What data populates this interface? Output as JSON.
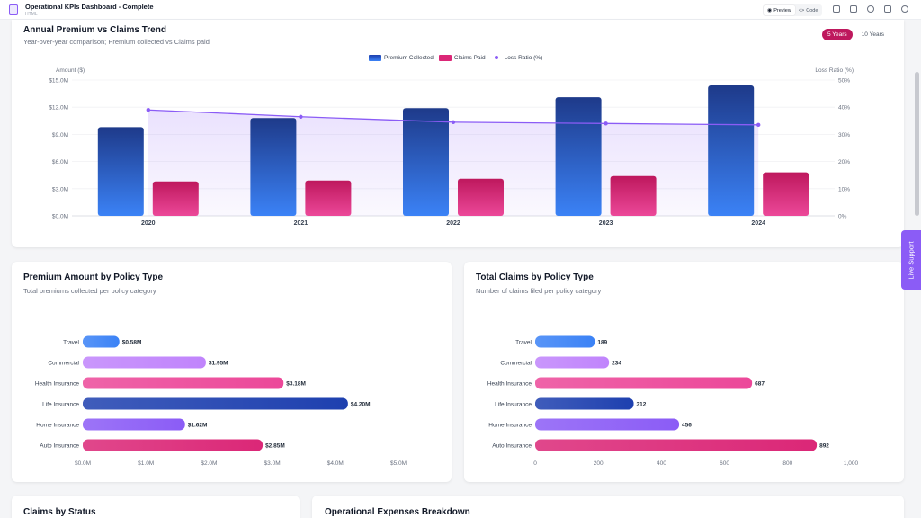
{
  "app": {
    "title": "Operational KPIs Dashboard - Complete",
    "subtitle": "HTML",
    "preview_label": "Preview",
    "code_label": "Code"
  },
  "icons": [
    "shield-icon",
    "eye-icon",
    "code-icon",
    "download-icon",
    "bookmark-icon",
    "globe-icon",
    "expand-icon",
    "more-icon"
  ],
  "trend": {
    "title": "Annual Premium vs Claims Trend",
    "subtitle": "Year-over-year comparison; Premium collected vs Claims paid",
    "toggle": [
      "5 Years",
      "10 Years"
    ],
    "active_toggle": "5 Years"
  },
  "premium_by_type": {
    "title": "Premium Amount by Policy Type",
    "subtitle": "Total premiums collected per policy category"
  },
  "claims_by_type": {
    "title": "Total Claims by Policy Type",
    "subtitle": "Number of claims filed per policy category"
  },
  "bottom": {
    "claims_status_title": "Claims by Status",
    "expenses_title": "Operational Expenses Breakdown"
  },
  "live_support": "Live Support",
  "colors": {
    "accent": "#be185d",
    "premium": "#2f5fd0",
    "claims": "#db2777",
    "loss_ratio": "#8b5cf6"
  },
  "chart_data": [
    {
      "type": "bar",
      "title": "Annual Premium vs Claims Trend",
      "categories": [
        "2020",
        "2021",
        "2022",
        "2023",
        "2024"
      ],
      "series": [
        {
          "name": "Premium Collected",
          "axis": "left",
          "values": [
            9.8,
            10.8,
            11.9,
            13.1,
            14.4
          ]
        },
        {
          "name": "Claims Paid",
          "axis": "left",
          "values": [
            3.8,
            3.9,
            4.1,
            4.4,
            4.8
          ]
        },
        {
          "name": "Loss Ratio (%)",
          "type": "line",
          "axis": "right",
          "values": [
            39,
            36.5,
            34.5,
            34,
            33.5
          ]
        }
      ],
      "ylabel": "Amount ($)",
      "ylabel_right": "Loss Ratio (%)",
      "ylim": [
        0,
        15
      ],
      "ylim_right": [
        0,
        50
      ],
      "yticks": [
        "$0.0M",
        "$3.0M",
        "$6.0M",
        "$9.0M",
        "$12.0M",
        "$15.0M"
      ],
      "yticks_right": [
        "0%",
        "10%",
        "20%",
        "30%",
        "40%",
        "50%"
      ],
      "legend": "top-center",
      "grid": true
    },
    {
      "type": "bar",
      "orientation": "horizontal",
      "title": "Premium Amount by Policy Type",
      "categories": [
        "Travel",
        "Commercial",
        "Health Insurance",
        "Life Insurance",
        "Home Insurance",
        "Auto Insurance"
      ],
      "values": [
        0.58,
        1.95,
        3.18,
        4.2,
        1.62,
        2.85
      ],
      "labels": [
        "$0.58M",
        "$1.95M",
        "$3.18M",
        "$4.20M",
        "$1.62M",
        "$2.85M"
      ],
      "xlim": [
        0,
        5
      ],
      "xticks": [
        "$0.0M",
        "$1.0M",
        "$2.0M",
        "$3.0M",
        "$4.0M",
        "$5.0M"
      ],
      "colors": [
        "#3b82f6",
        "#c084fc",
        "#ec4899",
        "#1e40af",
        "#8b5cf6",
        "#db2777"
      ]
    },
    {
      "type": "bar",
      "orientation": "horizontal",
      "title": "Total Claims by Policy Type",
      "categories": [
        "Travel",
        "Commercial",
        "Health Insurance",
        "Life Insurance",
        "Home Insurance",
        "Auto Insurance"
      ],
      "values": [
        189,
        234,
        687,
        312,
        456,
        892
      ],
      "labels": [
        "189",
        "234",
        "687",
        "312",
        "456",
        "892"
      ],
      "xlim": [
        0,
        1000
      ],
      "xticks": [
        "0",
        "200",
        "400",
        "600",
        "800",
        "1,000"
      ],
      "colors": [
        "#3b82f6",
        "#c084fc",
        "#ec4899",
        "#1e40af",
        "#8b5cf6",
        "#db2777"
      ]
    }
  ]
}
